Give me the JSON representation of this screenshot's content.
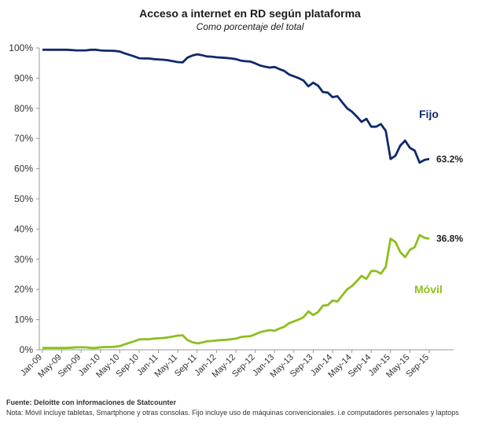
{
  "chart_data": {
    "type": "line",
    "title": "Acceso a internet en RD según plataforma",
    "subtitle": "Como porcentaje del total",
    "ylim": [
      0,
      100
    ],
    "y_ticks": [
      "0%",
      "10%",
      "20%",
      "30%",
      "40%",
      "50%",
      "60%",
      "70%",
      "80%",
      "90%",
      "100%"
    ],
    "x_tick_labels": [
      "Jan-09",
      "May-09",
      "Sep-09",
      "Jan-10",
      "May-10",
      "Sep-10",
      "Jan-11",
      "May-11",
      "Sep-11",
      "Jan-12",
      "May-12",
      "Sep-12",
      "Jan-13",
      "May-13",
      "Sep-13",
      "Jan-14",
      "May-14",
      "Sep-14",
      "Jan-15",
      "May-15",
      "Sep-15"
    ],
    "x_start": "Jan-09",
    "x_end": "Dec-15",
    "grid": false,
    "series": [
      {
        "name": "Fijo",
        "color": "#0f2a6b",
        "end_label": "63.2%",
        "values": [
          99.4,
          99.4,
          99.4,
          99.4,
          99.4,
          99.4,
          99.3,
          99.2,
          99.2,
          99.2,
          99.4,
          99.4,
          99.2,
          99.1,
          99.1,
          99.0,
          98.8,
          98.2,
          97.7,
          97.2,
          96.6,
          96.5,
          96.5,
          96.3,
          96.2,
          96.1,
          95.9,
          95.6,
          95.3,
          95.2,
          96.8,
          97.5,
          97.9,
          97.6,
          97.2,
          97.1,
          96.9,
          96.8,
          96.7,
          96.5,
          96.3,
          95.8,
          95.6,
          95.5,
          94.9,
          94.2,
          93.8,
          93.5,
          93.7,
          93.0,
          92.4,
          91.2,
          90.6,
          90.0,
          89.2,
          87.3,
          88.5,
          87.5,
          85.4,
          85.2,
          83.7,
          84.0,
          82.0,
          80.0,
          78.9,
          77.3,
          75.5,
          76.5,
          73.9,
          73.9,
          74.8,
          72.5,
          63.2,
          64.3,
          67.6,
          69.3,
          66.9,
          66.0,
          62.0,
          62.9,
          63.2
        ],
        "label_values": [
          {
            "x": 0,
            "y": 63.2,
            "text": "63.2%"
          }
        ]
      },
      {
        "name": "Móvil",
        "color": "#8dbf1e",
        "end_label": "36.8%",
        "values": [
          0.6,
          0.6,
          0.6,
          0.6,
          0.6,
          0.6,
          0.7,
          0.8,
          0.8,
          0.8,
          0.6,
          0.6,
          0.8,
          0.9,
          0.9,
          1.0,
          1.2,
          1.8,
          2.3,
          2.8,
          3.4,
          3.5,
          3.5,
          3.7,
          3.8,
          3.9,
          4.1,
          4.4,
          4.7,
          4.8,
          3.2,
          2.5,
          2.1,
          2.4,
          2.8,
          2.9,
          3.1,
          3.2,
          3.3,
          3.5,
          3.7,
          4.2,
          4.4,
          4.5,
          5.1,
          5.8,
          6.2,
          6.5,
          6.3,
          7.0,
          7.6,
          8.8,
          9.4,
          10.0,
          10.8,
          12.7,
          11.5,
          12.5,
          14.6,
          14.8,
          16.3,
          16.0,
          18.0,
          20.0,
          21.1,
          22.7,
          24.5,
          23.5,
          26.1,
          26.1,
          25.2,
          27.5,
          36.8,
          35.7,
          32.4,
          30.7,
          33.1,
          34.0,
          38.0,
          37.1,
          36.8
        ]
      }
    ]
  },
  "legend": {
    "fijo": "Fijo",
    "movil": "Móvil"
  },
  "footer": {
    "source": "Fuente: Deloitte con informaciones de Statcounter",
    "note": "Nota: Móvil incluye tabletas, Smartphone y otras consolas. Fijo incluye uso de máquinas convencionales. i.e computadores personales y laptops"
  }
}
